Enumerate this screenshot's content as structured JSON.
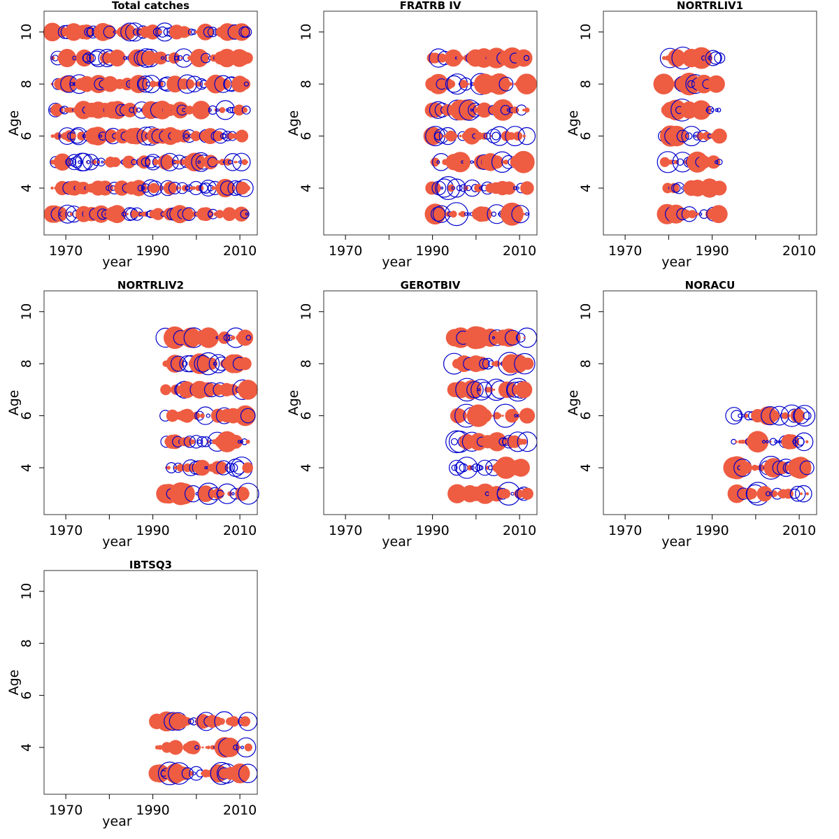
{
  "figure": {
    "colors": {
      "positive": "#ee5c42",
      "negative": "#0000cd",
      "frame": "#333333"
    }
  },
  "chart_data": [
    {
      "type": "scatter",
      "title": "Total catches",
      "xlabel": "year",
      "ylabel": "Age",
      "xlim": [
        1965,
        2014
      ],
      "ylim": [
        2.2,
        10.8
      ],
      "xticks": [
        1970,
        1980,
        1990,
        2000,
        2010
      ],
      "xticklabels": [
        "1970",
        "",
        "1990",
        "",
        "2010"
      ],
      "yticks": [
        4,
        6,
        8,
        10
      ],
      "years": [
        1967,
        2012
      ],
      "ages": [
        3,
        4,
        5,
        6,
        7,
        8,
        9,
        10
      ],
      "bubbles": "residual bubbles: filled = positive, open circle = negative, radius proportional to |residual|"
    },
    {
      "type": "scatter",
      "title": "FRATRB IV",
      "xlabel": "year",
      "ylabel": "Age",
      "xlim": [
        1965,
        2014
      ],
      "ylim": [
        2.2,
        10.8
      ],
      "xticks": [
        1970,
        1980,
        1990,
        2000,
        2010
      ],
      "xticklabels": [
        "1970",
        "",
        "1990",
        "",
        "2010"
      ],
      "yticks": [
        4,
        6,
        8,
        10
      ],
      "years": [
        1990,
        2012
      ],
      "ages": [
        3,
        4,
        5,
        6,
        7,
        8,
        9
      ]
    },
    {
      "type": "scatter",
      "title": "NORTRLIV1",
      "xlabel": "year",
      "ylabel": "Age",
      "xlim": [
        1965,
        2014
      ],
      "ylim": [
        2.2,
        10.8
      ],
      "xticks": [
        1970,
        1980,
        1990,
        2000,
        2010
      ],
      "xticklabels": [
        "1970",
        "",
        "1990",
        "",
        "2010"
      ],
      "yticks": [
        4,
        6,
        8,
        10
      ],
      "years": [
        1979,
        1992
      ],
      "ages": [
        3,
        4,
        5,
        6,
        7,
        8,
        9
      ]
    },
    {
      "type": "scatter",
      "title": "NORTRLIV2",
      "xlabel": "year",
      "ylabel": "Age",
      "xlim": [
        1965,
        2014
      ],
      "ylim": [
        2.2,
        10.8
      ],
      "xticks": [
        1970,
        1980,
        1990,
        2000,
        2010
      ],
      "xticklabels": [
        "1970",
        "",
        "1990",
        "",
        "2010"
      ],
      "yticks": [
        4,
        6,
        8,
        10
      ],
      "years": [
        1993,
        2012
      ],
      "ages": [
        3,
        4,
        5,
        6,
        7,
        8,
        9
      ]
    },
    {
      "type": "scatter",
      "title": "GEROTBIV",
      "xlabel": "year",
      "ylabel": "Age",
      "xlim": [
        1965,
        2014
      ],
      "ylim": [
        2.2,
        10.8
      ],
      "xticks": [
        1970,
        1980,
        1990,
        2000,
        2010
      ],
      "xticklabels": [
        "1970",
        "",
        "1990",
        "",
        "2010"
      ],
      "yticks": [
        4,
        6,
        8,
        10
      ],
      "years": [
        1995,
        2012
      ],
      "ages": [
        3,
        4,
        5,
        6,
        7,
        8,
        9
      ]
    },
    {
      "type": "scatter",
      "title": "NORACU",
      "xlabel": "year",
      "ylabel": "Age",
      "xlim": [
        1965,
        2014
      ],
      "ylim": [
        2.2,
        10.8
      ],
      "xticks": [
        1970,
        1980,
        1990,
        2000,
        2010
      ],
      "xticklabels": [
        "1970",
        "",
        "1990",
        "",
        "2010"
      ],
      "yticks": [
        4,
        6,
        8,
        10
      ],
      "years": [
        1995,
        2012
      ],
      "ages": [
        3,
        4,
        5,
        6
      ]
    },
    {
      "type": "scatter",
      "title": "IBTSQ3",
      "xlabel": "year",
      "ylabel": "Age",
      "xlim": [
        1965,
        2014
      ],
      "ylim": [
        2.2,
        10.8
      ],
      "xticks": [
        1970,
        1980,
        1990,
        2000,
        2010
      ],
      "xticklabels": [
        "1970",
        "",
        "1990",
        "",
        "2010"
      ],
      "yticks": [
        4,
        6,
        8,
        10
      ],
      "years": [
        1991,
        2012
      ],
      "ages": [
        3,
        4,
        5
      ]
    }
  ]
}
